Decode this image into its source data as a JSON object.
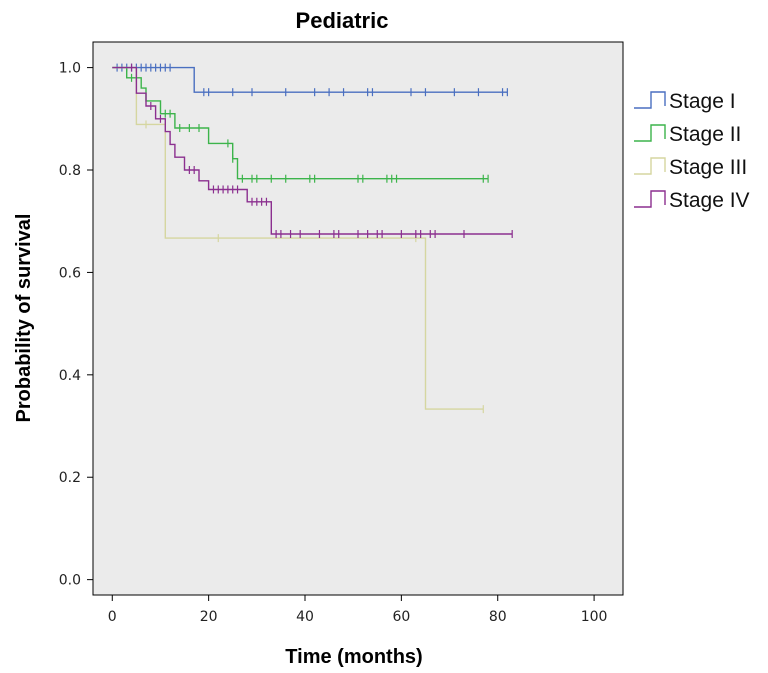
{
  "chart_data": {
    "type": "line",
    "title": "Pediatric",
    "xlabel": "Time (months)",
    "ylabel": "Probability of survival",
    "xlim": [
      -4,
      106
    ],
    "ylim": [
      -0.03,
      1.05
    ],
    "xticks": [
      0,
      20,
      40,
      60,
      80,
      100
    ],
    "xtick_labels": [
      "0",
      "20",
      "40",
      "60",
      "80",
      "100"
    ],
    "yticks": [
      0.0,
      0.2,
      0.4,
      0.6,
      0.8,
      1.0
    ],
    "ytick_labels": [
      "0.0",
      "0.2",
      "0.4",
      "0.6",
      "0.8",
      "1.0"
    ],
    "grid": false,
    "plot_background": "#ebebeb",
    "legend_position": "right",
    "series": [
      {
        "name": "Stage I",
        "color": "#4a6fc0",
        "steps": [
          [
            0,
            1.0
          ],
          [
            17,
            1.0
          ],
          [
            17,
            0.952
          ],
          [
            82,
            0.952
          ]
        ],
        "censored": [
          [
            1,
            1.0
          ],
          [
            2,
            1.0
          ],
          [
            3,
            1.0
          ],
          [
            4,
            1.0
          ],
          [
            5,
            1.0
          ],
          [
            6,
            1.0
          ],
          [
            7,
            1.0
          ],
          [
            8,
            1.0
          ],
          [
            9,
            1.0
          ],
          [
            10,
            1.0
          ],
          [
            11,
            1.0
          ],
          [
            12,
            1.0
          ],
          [
            19,
            0.952
          ],
          [
            20,
            0.952
          ],
          [
            25,
            0.952
          ],
          [
            29,
            0.952
          ],
          [
            36,
            0.952
          ],
          [
            42,
            0.952
          ],
          [
            45,
            0.952
          ],
          [
            48,
            0.952
          ],
          [
            53,
            0.952
          ],
          [
            54,
            0.952
          ],
          [
            62,
            0.952
          ],
          [
            65,
            0.952
          ],
          [
            71,
            0.952
          ],
          [
            76,
            0.952
          ],
          [
            81,
            0.952
          ],
          [
            82,
            0.952
          ]
        ]
      },
      {
        "name": "Stage II",
        "color": "#3cb44b",
        "steps": [
          [
            0,
            1.0
          ],
          [
            3,
            1.0
          ],
          [
            3,
            0.98
          ],
          [
            6,
            0.98
          ],
          [
            6,
            0.96
          ],
          [
            7,
            0.96
          ],
          [
            7,
            0.935
          ],
          [
            10,
            0.935
          ],
          [
            10,
            0.91
          ],
          [
            13,
            0.91
          ],
          [
            13,
            0.882
          ],
          [
            20,
            0.882
          ],
          [
            20,
            0.852
          ],
          [
            25,
            0.852
          ],
          [
            25,
            0.822
          ],
          [
            26,
            0.822
          ],
          [
            26,
            0.783
          ],
          [
            78,
            0.783
          ]
        ],
        "censored": [
          [
            4,
            0.98
          ],
          [
            5,
            0.98
          ],
          [
            11,
            0.91
          ],
          [
            12,
            0.91
          ],
          [
            14,
            0.882
          ],
          [
            16,
            0.882
          ],
          [
            18,
            0.882
          ],
          [
            24,
            0.852
          ],
          [
            25,
            0.822
          ],
          [
            27,
            0.783
          ],
          [
            29,
            0.783
          ],
          [
            30,
            0.783
          ],
          [
            33,
            0.783
          ],
          [
            36,
            0.783
          ],
          [
            41,
            0.783
          ],
          [
            42,
            0.783
          ],
          [
            51,
            0.783
          ],
          [
            52,
            0.783
          ],
          [
            57,
            0.783
          ],
          [
            58,
            0.783
          ],
          [
            59,
            0.783
          ],
          [
            77,
            0.783
          ],
          [
            78,
            0.783
          ]
        ]
      },
      {
        "name": "Stage III",
        "color": "#d5d6a0",
        "steps": [
          [
            0,
            1.0
          ],
          [
            5,
            1.0
          ],
          [
            5,
            0.889
          ],
          [
            11,
            0.889
          ],
          [
            11,
            0.667
          ],
          [
            65,
            0.667
          ],
          [
            65,
            0.333
          ],
          [
            77,
            0.333
          ]
        ],
        "censored": [
          [
            7,
            0.889
          ],
          [
            22,
            0.667
          ],
          [
            63,
            0.667
          ],
          [
            77,
            0.333
          ]
        ]
      },
      {
        "name": "Stage IV",
        "color": "#8b2f8f",
        "steps": [
          [
            0,
            1.0
          ],
          [
            5,
            1.0
          ],
          [
            5,
            0.95
          ],
          [
            7,
            0.95
          ],
          [
            7,
            0.925
          ],
          [
            9,
            0.925
          ],
          [
            9,
            0.9
          ],
          [
            11,
            0.9
          ],
          [
            11,
            0.875
          ],
          [
            12,
            0.875
          ],
          [
            12,
            0.85
          ],
          [
            13,
            0.85
          ],
          [
            13,
            0.825
          ],
          [
            15,
            0.825
          ],
          [
            15,
            0.8
          ],
          [
            18,
            0.8
          ],
          [
            18,
            0.779
          ],
          [
            20,
            0.779
          ],
          [
            20,
            0.762
          ],
          [
            28,
            0.762
          ],
          [
            28,
            0.738
          ],
          [
            33,
            0.738
          ],
          [
            33,
            0.675
          ],
          [
            83,
            0.675
          ]
        ],
        "censored": [
          [
            4,
            1.0
          ],
          [
            8,
            0.925
          ],
          [
            10,
            0.9
          ],
          [
            16,
            0.8
          ],
          [
            17,
            0.8
          ],
          [
            21,
            0.762
          ],
          [
            22,
            0.762
          ],
          [
            23,
            0.762
          ],
          [
            24,
            0.762
          ],
          [
            25,
            0.762
          ],
          [
            26,
            0.762
          ],
          [
            29,
            0.738
          ],
          [
            30,
            0.738
          ],
          [
            31,
            0.738
          ],
          [
            32,
            0.738
          ],
          [
            34,
            0.675
          ],
          [
            35,
            0.675
          ],
          [
            37,
            0.675
          ],
          [
            39,
            0.675
          ],
          [
            43,
            0.675
          ],
          [
            46,
            0.675
          ],
          [
            47,
            0.675
          ],
          [
            51,
            0.675
          ],
          [
            53,
            0.675
          ],
          [
            55,
            0.675
          ],
          [
            56,
            0.675
          ],
          [
            60,
            0.675
          ],
          [
            63,
            0.675
          ],
          [
            64,
            0.675
          ],
          [
            66,
            0.675
          ],
          [
            67,
            0.675
          ],
          [
            73,
            0.675
          ],
          [
            83,
            0.675
          ]
        ]
      }
    ]
  }
}
